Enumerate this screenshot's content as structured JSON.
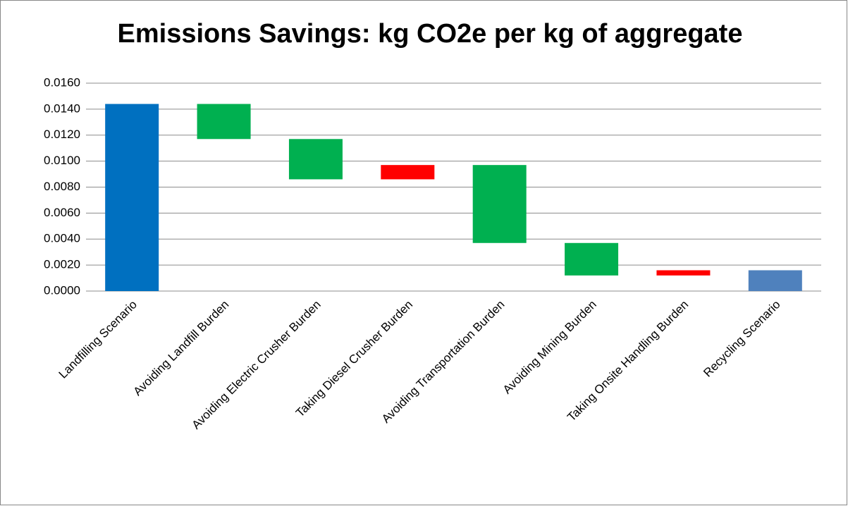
{
  "chart_data": {
    "type": "waterfall",
    "title": "Emissions Savings: kg CO2e per kg of aggregate",
    "categories": [
      "Landfilling Scenario",
      "Avoiding Landfill Burden",
      "Avoiding Electric Crusher Burden",
      "Taking Diesel Crusher Burden",
      "Avoiding Transportation Burden",
      "Avoiding Mining Burden",
      "Taking Onsite Handling Burden",
      "Recycling Scenario"
    ],
    "values": [
      0.0144,
      -0.0027,
      -0.0031,
      0.0011,
      -0.006,
      -0.0025,
      0.0004,
      0.0016
    ],
    "is_total": [
      true,
      false,
      false,
      false,
      false,
      false,
      false,
      true
    ],
    "colors": [
      "#0070c0",
      "#00b050",
      "#00b050",
      "#ff0000",
      "#00b050",
      "#00b050",
      "#ff0000",
      "#4f81bd"
    ],
    "ylim": [
      0,
      0.016
    ],
    "yticks": [
      {
        "value": 0,
        "label": "0.0000"
      },
      {
        "value": 0.002,
        "label": "0.0020"
      },
      {
        "value": 0.004,
        "label": "0.0040"
      },
      {
        "value": 0.006,
        "label": "0.0060"
      },
      {
        "value": 0.008,
        "label": "0.0080"
      },
      {
        "value": 0.01,
        "label": "0.0100"
      },
      {
        "value": 0.012,
        "label": "0.0120"
      },
      {
        "value": 0.014,
        "label": "0.0140"
      },
      {
        "value": 0.016,
        "label": "0.0160"
      }
    ],
    "grid": true
  }
}
